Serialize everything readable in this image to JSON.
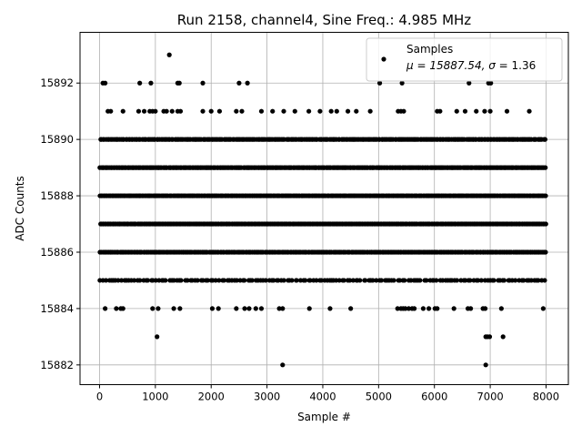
{
  "chart_data": {
    "type": "scatter",
    "title": "Run 2158, channel4, Sine Freq.: 4.985 MHz",
    "xlabel": "Sample #",
    "ylabel": "ADC Counts",
    "xlim": [
      -350,
      8400
    ],
    "ylim": [
      15881.3,
      15893.8
    ],
    "x_ticks": [
      0,
      1000,
      2000,
      3000,
      4000,
      5000,
      6000,
      7000,
      8000
    ],
    "y_ticks": [
      15882,
      15884,
      15886,
      15888,
      15890,
      15892
    ],
    "grid": true,
    "marker_color": "#000000",
    "legend": {
      "placement": "top-right",
      "label": "Samples",
      "stats_prefix_mu": "μ = 15887.54, ",
      "stats_sigma": "σ",
      "stats_suffix": " = 1.36"
    },
    "dense_levels": [
      {
        "y": 15890,
        "x_range": [
          0,
          8000
        ],
        "samples": 300
      },
      {
        "y": 15889,
        "x_range": [
          0,
          8000
        ],
        "samples": 340
      },
      {
        "y": 15888,
        "x_range": [
          0,
          8000
        ],
        "samples": 380
      },
      {
        "y": 15887,
        "x_range": [
          0,
          8000
        ],
        "samples": 360
      },
      {
        "y": 15886,
        "x_range": [
          0,
          8000
        ],
        "samples": 320
      },
      {
        "y": 15885,
        "x_range": [
          0,
          8000
        ],
        "samples": 170
      }
    ],
    "points": [
      {
        "x": 1250,
        "y": 15893
      },
      {
        "x": 60,
        "y": 15892
      },
      {
        "x": 100,
        "y": 15892
      },
      {
        "x": 720,
        "y": 15892
      },
      {
        "x": 920,
        "y": 15892
      },
      {
        "x": 1400,
        "y": 15892
      },
      {
        "x": 1430,
        "y": 15892
      },
      {
        "x": 1850,
        "y": 15892
      },
      {
        "x": 2500,
        "y": 15892
      },
      {
        "x": 2650,
        "y": 15892
      },
      {
        "x": 5020,
        "y": 15892
      },
      {
        "x": 5420,
        "y": 15892
      },
      {
        "x": 6620,
        "y": 15892
      },
      {
        "x": 6970,
        "y": 15892
      },
      {
        "x": 7010,
        "y": 15892
      },
      {
        "x": 150,
        "y": 15891
      },
      {
        "x": 200,
        "y": 15891
      },
      {
        "x": 420,
        "y": 15891
      },
      {
        "x": 700,
        "y": 15891
      },
      {
        "x": 800,
        "y": 15891
      },
      {
        "x": 900,
        "y": 15891
      },
      {
        "x": 950,
        "y": 15891
      },
      {
        "x": 1000,
        "y": 15891
      },
      {
        "x": 1150,
        "y": 15891
      },
      {
        "x": 1200,
        "y": 15891
      },
      {
        "x": 1300,
        "y": 15891
      },
      {
        "x": 1400,
        "y": 15891
      },
      {
        "x": 1450,
        "y": 15891
      },
      {
        "x": 1850,
        "y": 15891
      },
      {
        "x": 2000,
        "y": 15891
      },
      {
        "x": 2150,
        "y": 15891
      },
      {
        "x": 2450,
        "y": 15891
      },
      {
        "x": 2550,
        "y": 15891
      },
      {
        "x": 2900,
        "y": 15891
      },
      {
        "x": 3100,
        "y": 15891
      },
      {
        "x": 3300,
        "y": 15891
      },
      {
        "x": 3500,
        "y": 15891
      },
      {
        "x": 3750,
        "y": 15891
      },
      {
        "x": 3950,
        "y": 15891
      },
      {
        "x": 4150,
        "y": 15891
      },
      {
        "x": 4250,
        "y": 15891
      },
      {
        "x": 4450,
        "y": 15891
      },
      {
        "x": 4600,
        "y": 15891
      },
      {
        "x": 4850,
        "y": 15891
      },
      {
        "x": 5350,
        "y": 15891
      },
      {
        "x": 5400,
        "y": 15891
      },
      {
        "x": 5450,
        "y": 15891
      },
      {
        "x": 6050,
        "y": 15891
      },
      {
        "x": 6100,
        "y": 15891
      },
      {
        "x": 6400,
        "y": 15891
      },
      {
        "x": 6550,
        "y": 15891
      },
      {
        "x": 6750,
        "y": 15891
      },
      {
        "x": 6900,
        "y": 15891
      },
      {
        "x": 7000,
        "y": 15891
      },
      {
        "x": 7300,
        "y": 15891
      },
      {
        "x": 7700,
        "y": 15891
      },
      {
        "x": 100,
        "y": 15884
      },
      {
        "x": 300,
        "y": 15884
      },
      {
        "x": 380,
        "y": 15884
      },
      {
        "x": 420,
        "y": 15884
      },
      {
        "x": 950,
        "y": 15884
      },
      {
        "x": 1050,
        "y": 15884
      },
      {
        "x": 1330,
        "y": 15884
      },
      {
        "x": 1440,
        "y": 15884
      },
      {
        "x": 2020,
        "y": 15884
      },
      {
        "x": 2130,
        "y": 15884
      },
      {
        "x": 2450,
        "y": 15884
      },
      {
        "x": 2600,
        "y": 15884
      },
      {
        "x": 2680,
        "y": 15884
      },
      {
        "x": 2800,
        "y": 15884
      },
      {
        "x": 2900,
        "y": 15884
      },
      {
        "x": 3220,
        "y": 15884
      },
      {
        "x": 3280,
        "y": 15884
      },
      {
        "x": 3760,
        "y": 15884
      },
      {
        "x": 4130,
        "y": 15884
      },
      {
        "x": 4500,
        "y": 15884
      },
      {
        "x": 5340,
        "y": 15884
      },
      {
        "x": 5400,
        "y": 15884
      },
      {
        "x": 5440,
        "y": 15884
      },
      {
        "x": 5480,
        "y": 15884
      },
      {
        "x": 5540,
        "y": 15884
      },
      {
        "x": 5600,
        "y": 15884
      },
      {
        "x": 5640,
        "y": 15884
      },
      {
        "x": 5800,
        "y": 15884
      },
      {
        "x": 5900,
        "y": 15884
      },
      {
        "x": 6010,
        "y": 15884
      },
      {
        "x": 6050,
        "y": 15884
      },
      {
        "x": 6350,
        "y": 15884
      },
      {
        "x": 6600,
        "y": 15884
      },
      {
        "x": 6650,
        "y": 15884
      },
      {
        "x": 6870,
        "y": 15884
      },
      {
        "x": 6910,
        "y": 15884
      },
      {
        "x": 7200,
        "y": 15884
      },
      {
        "x": 7950,
        "y": 15884
      },
      {
        "x": 1030,
        "y": 15883
      },
      {
        "x": 6920,
        "y": 15883
      },
      {
        "x": 6950,
        "y": 15883
      },
      {
        "x": 6990,
        "y": 15883
      },
      {
        "x": 7230,
        "y": 15883
      },
      {
        "x": 3280,
        "y": 15882
      },
      {
        "x": 6920,
        "y": 15882
      }
    ]
  }
}
